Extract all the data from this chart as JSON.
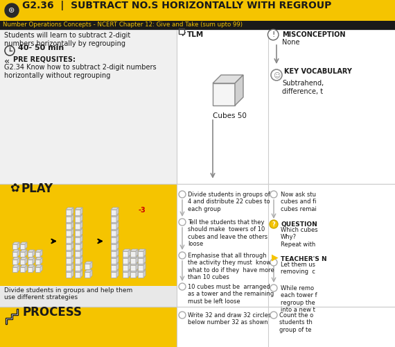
{
  "title_text": "G2.36  |  SUBTRACT NO.S HORIZONTALLY WITH REGROUP",
  "title_bg": "#F5C400",
  "title_fg": "#1a1a1a",
  "subtitle_text": "Number Operations Concepts - NCERT Chapter 12: Give and Take (sum upto 99)",
  "subtitle_bg": "#1a1a1a",
  "subtitle_fg": "#F5C400",
  "col1_bg": "#f0f0f0",
  "play_bg": "#F5C400",
  "process_bg": "#F5C400",
  "learn_text": "Students will learn to subtract 2-digit\nnumbers horizontally by regrouping",
  "time_text": "40- 50 min",
  "prereq_label": "PRE REQUSITES:",
  "prereq_text": "G2.34 Know how to subtract 2-digit numbers\nhorizontally without regrouping",
  "tlm_label": "TLM",
  "tlm_item": "Cubes 50",
  "misconception_label": "MISCONCEPTION",
  "misconception_text": "None",
  "vocab_label": "KEY VOCABULARY",
  "vocab_text": "Subtrahend,\ndifference, t",
  "play_label": "PLAY",
  "play_caption": "Divide students in groups and help them\nuse different strategies",
  "play_steps": [
    "Divide students in groups of\n4 and distribute 22 cubes to\neach group",
    "Tell the students that they\nshould make  towers of 10\ncubes and leave the others\nloose",
    "Emphasise that all through\nthe activity they must  know\nwhat to do if they  have more\nthan 10 cubes",
    "10 cubes must be  arranged\nas a tower and the remaining\nmust be left loose"
  ],
  "play_steps_r": [
    "Now ask stu\ncubes and fi\ncubes remai",
    "QUESTION\nWhich cubes\nWhy?\nRepeat with",
    "TEACHER'S N\nLet them us\nremoving  c",
    "While remo\neach tower f\nregroup the\ninto a new t"
  ],
  "process_label": "PROCESS",
  "process_steps_l": [
    "Write 32 and draw 32 circles\nbelow number 32 as shown"
  ],
  "process_steps_r": [
    "Count the o\nstudents th\ngroup of te"
  ],
  "question_circle_color": "#F5C400"
}
